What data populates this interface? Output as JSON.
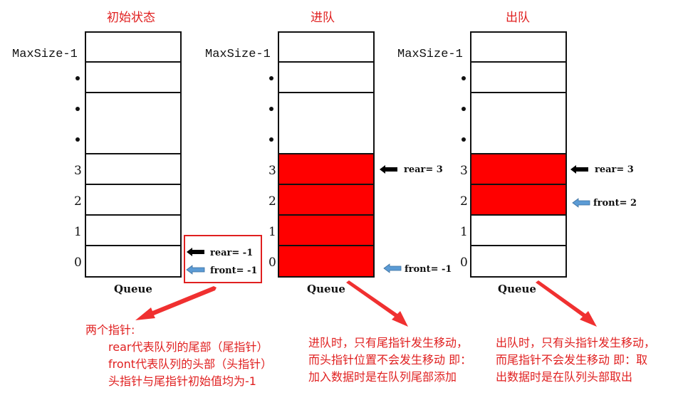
{
  "panels": [
    {
      "title": "初始状态",
      "queue_label": "Queue",
      "filled_slots": [],
      "rear_label": "rear= -1",
      "front_label": "front= -1"
    },
    {
      "title": "进队",
      "queue_label": "Queue",
      "filled_slots": [
        0,
        1,
        2,
        3
      ],
      "rear_label": "rear= 3",
      "front_label": "front= -1"
    },
    {
      "title": "出队",
      "queue_label": "Queue",
      "filled_slots": [
        2,
        3
      ],
      "rear_label": "rear= 3",
      "front_label": "front= 2"
    }
  ],
  "slot_labels": {
    "max": "MaxSize-1",
    "s3": "3",
    "s2": "2",
    "s1": "1",
    "s0": "0"
  },
  "notes": {
    "init": {
      "line1": "两个指针:",
      "line2": "rear代表队列的尾部（尾指针）",
      "line3": "front代表队列的头部（头指针）",
      "line4": "头指针与尾指针初始值均为-1"
    },
    "enqueue": {
      "line1": "进队时，只有尾指针发生移动，",
      "line2": "而头指针位置不会发生移动 即：",
      "line3": "加入数据时是在队列尾部添加"
    },
    "dequeue": {
      "line1": "出队时，只有头指针发生移动，",
      "line2": "而尾指针不会发生移动 即：取",
      "line3": "出数据时是在队列头部取出"
    }
  },
  "colors": {
    "annotation": "#e02020",
    "filled": "#ff0000",
    "rear_arrow": "#000000",
    "front_arrow": "#5b9bd5"
  }
}
